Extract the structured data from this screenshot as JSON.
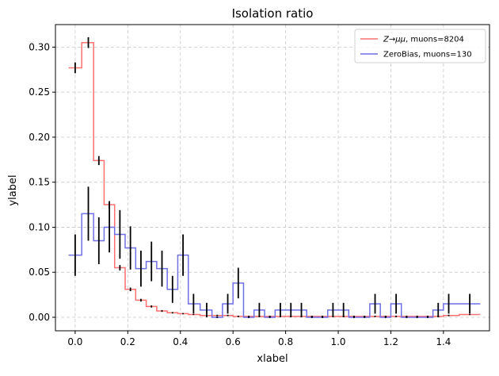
{
  "chart_data": {
    "type": "step",
    "title": "Isolation ratio",
    "xlabel": "xlabel",
    "ylabel": "ylabel",
    "xlim": [
      -0.075,
      1.575
    ],
    "ylim": [
      -0.015,
      0.325
    ],
    "x_ticks": [
      0.0,
      0.2,
      0.4,
      0.6,
      0.8,
      1.0,
      1.2,
      1.4
    ],
    "x_tick_labels": [
      "0.0",
      "0.2",
      "0.4",
      "0.6",
      "0.8",
      "1.0",
      "1.2",
      "1.4"
    ],
    "y_ticks": [
      0.0,
      0.05,
      0.1,
      0.15,
      0.2,
      0.25,
      0.3
    ],
    "y_tick_labels": [
      "0.00",
      "0.05",
      "0.10",
      "0.15",
      "0.20",
      "0.25",
      "0.30"
    ],
    "grid": true,
    "legend_position": "top-right",
    "x": [
      0.0,
      0.05,
      0.09,
      0.13,
      0.17,
      0.21,
      0.25,
      0.29,
      0.33,
      0.37,
      0.41,
      0.45,
      0.5,
      0.54,
      0.58,
      0.62,
      0.66,
      0.7,
      0.74,
      0.78,
      0.82,
      0.86,
      0.9,
      0.94,
      0.98,
      1.02,
      1.06,
      1.1,
      1.14,
      1.18,
      1.22,
      1.26,
      1.3,
      1.34,
      1.38,
      1.42,
      1.5
    ],
    "series": [
      {
        "name": "$Z\\rightarrow\\mu\\mu$, muons=8204",
        "legend_main": "Z→μμ",
        "legend_rest": ", muons=8204",
        "color": "#ff7070",
        "y": [
          0.277,
          0.305,
          0.174,
          0.125,
          0.055,
          0.031,
          0.019,
          0.012,
          0.007,
          0.005,
          0.004,
          0.003,
          0.002,
          0.002,
          0.002,
          0.001,
          0.001,
          0.001,
          0.001,
          0.001,
          0.001,
          0.001,
          0.001,
          0.001,
          0.001,
          0.001,
          0.001,
          0.001,
          0.001,
          0.001,
          0.001,
          0.001,
          0.001,
          0.001,
          0.001,
          0.002,
          0.003
        ],
        "err": [
          0.006,
          0.006,
          0.005,
          0.004,
          0.003,
          0.002,
          0.0015,
          0.0012,
          0.001,
          0.0008,
          0.0007,
          0.0006,
          0.0005,
          0.0005,
          0.0005,
          0.0004,
          0.0004,
          0.0004,
          0.0004,
          0.0004,
          0.0004,
          0.0004,
          0.0004,
          0.0004,
          0.0004,
          0.0004,
          0.0004,
          0.0004,
          0.0004,
          0.0004,
          0.0004,
          0.0004,
          0.0004,
          0.0004,
          0.0004,
          0.0005,
          0.0006
        ]
      },
      {
        "name": "ZeroBias, muons=130",
        "legend_main": "ZeroBias",
        "legend_rest": ", muons=130",
        "color": "#6f6fe6",
        "y": [
          0.069,
          0.115,
          0.085,
          0.1,
          0.092,
          0.077,
          0.054,
          0.062,
          0.054,
          0.031,
          0.069,
          0.015,
          0.008,
          0.0,
          0.015,
          0.038,
          0.0,
          0.008,
          0.0,
          0.008,
          0.008,
          0.008,
          0.0,
          0.0,
          0.008,
          0.008,
          0.0,
          0.0,
          0.015,
          0.0,
          0.015,
          0.0,
          0.0,
          0.0,
          0.008,
          0.015,
          0.015
        ],
        "err": [
          0.023,
          0.03,
          0.026,
          0.028,
          0.027,
          0.024,
          0.02,
          0.022,
          0.02,
          0.015,
          0.023,
          0.011,
          0.008,
          0.0,
          0.011,
          0.017,
          0.0,
          0.008,
          0.0,
          0.008,
          0.008,
          0.008,
          0.0,
          0.0,
          0.008,
          0.008,
          0.0,
          0.0,
          0.011,
          0.0,
          0.011,
          0.0,
          0.0,
          0.0,
          0.008,
          0.011,
          0.011
        ]
      }
    ]
  }
}
